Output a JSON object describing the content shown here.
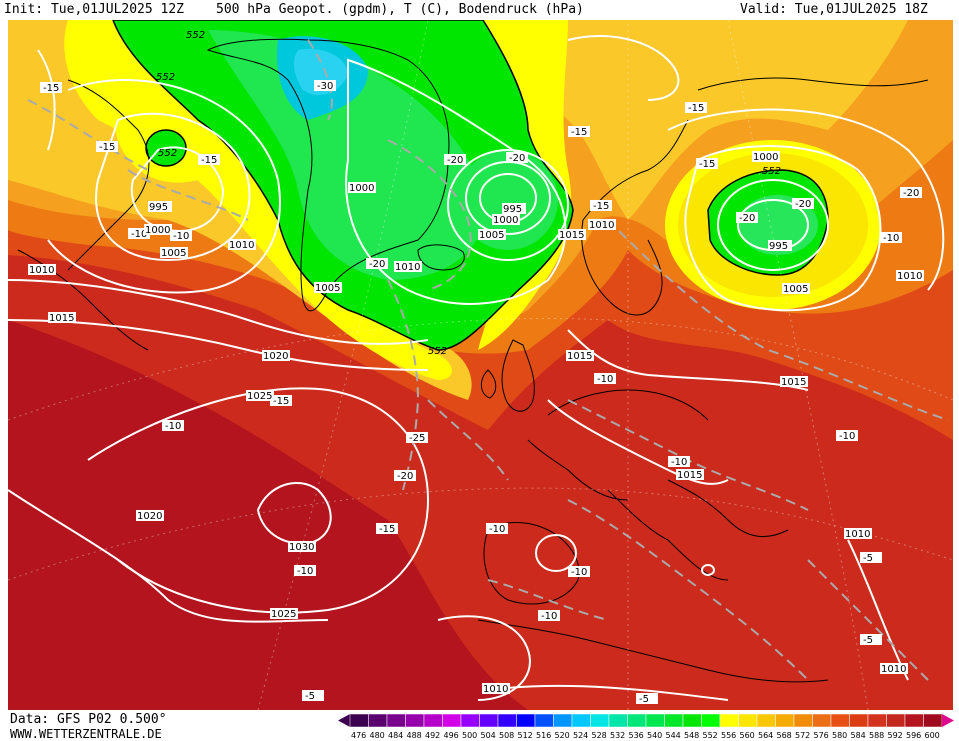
{
  "header": {
    "init": "Init: Tue,01JUL2025 12Z",
    "title": "500 hPa Geopot. (gpdm), T (C), Bodendruck (hPa)",
    "valid": "Valid: Tue,01JUL2025 18Z"
  },
  "footer": {
    "data_source": "Data: GFS P02 0.500°",
    "website": "WWW.WETTERZENTRALE.DE"
  },
  "colors": {
    "deep_red": "#b3141e",
    "red": "#d2321e",
    "dark_orange": "#e65a14",
    "orange": "#f08214",
    "light_orange": "#f5a01e",
    "gold": "#fac828",
    "yellow": "#ffff00",
    "green": "#00e600",
    "light_green": "#32e65a",
    "cyan": "#00c8dc"
  },
  "map": {
    "geopotential_labels": [
      "552",
      "552",
      "552",
      "552",
      "552"
    ],
    "temperature_labels": [
      "-15",
      "-15",
      "-15",
      "-15",
      "-15",
      "-15",
      "-15",
      "-15",
      "-15",
      "-10",
      "-10",
      "-10",
      "-10",
      "-10",
      "-10",
      "-10",
      "-10",
      "-10",
      "-10",
      "-10",
      "-20",
      "-20",
      "-20",
      "-20",
      "-20",
      "-20",
      "-25",
      "-30",
      "-5",
      "-5",
      "-5",
      "-5"
    ],
    "pressure_labels": [
      "995",
      "1000",
      "1005",
      "1010",
      "1010",
      "1015",
      "1020",
      "1025",
      "1020",
      "1030",
      "1025",
      "1000",
      "1005",
      "1010",
      "1005",
      "995",
      "1000",
      "1015",
      "1010",
      "1000",
      "995",
      "1005",
      "1010",
      "1015",
      "1015",
      "1010",
      "1015",
      "1010",
      "1010",
      "1010"
    ]
  },
  "legend": {
    "values": [
      "476",
      "480",
      "484",
      "488",
      "492",
      "496",
      "500",
      "504",
      "508",
      "512",
      "516",
      "520",
      "524",
      "528",
      "532",
      "536",
      "540",
      "544",
      "548",
      "552",
      "556",
      "560",
      "564",
      "568",
      "572",
      "576",
      "580",
      "584",
      "588",
      "592",
      "596",
      "600"
    ],
    "colors": [
      "#3c0050",
      "#5a006e",
      "#78008c",
      "#9600aa",
      "#b400c8",
      "#d200e6",
      "#9600ff",
      "#6400ff",
      "#3200ff",
      "#0000ff",
      "#0050ff",
      "#0096ff",
      "#00c8ff",
      "#00e6e6",
      "#00e6aa",
      "#00e678",
      "#00e650",
      "#00e628",
      "#00e600",
      "#00ff00",
      "#ffff00",
      "#fae600",
      "#fac800",
      "#f5aa00",
      "#f08c0a",
      "#eb6e14",
      "#e65014",
      "#dc3c14",
      "#d2321e",
      "#c3281e",
      "#b4141e",
      "#a00a1e"
    ]
  }
}
